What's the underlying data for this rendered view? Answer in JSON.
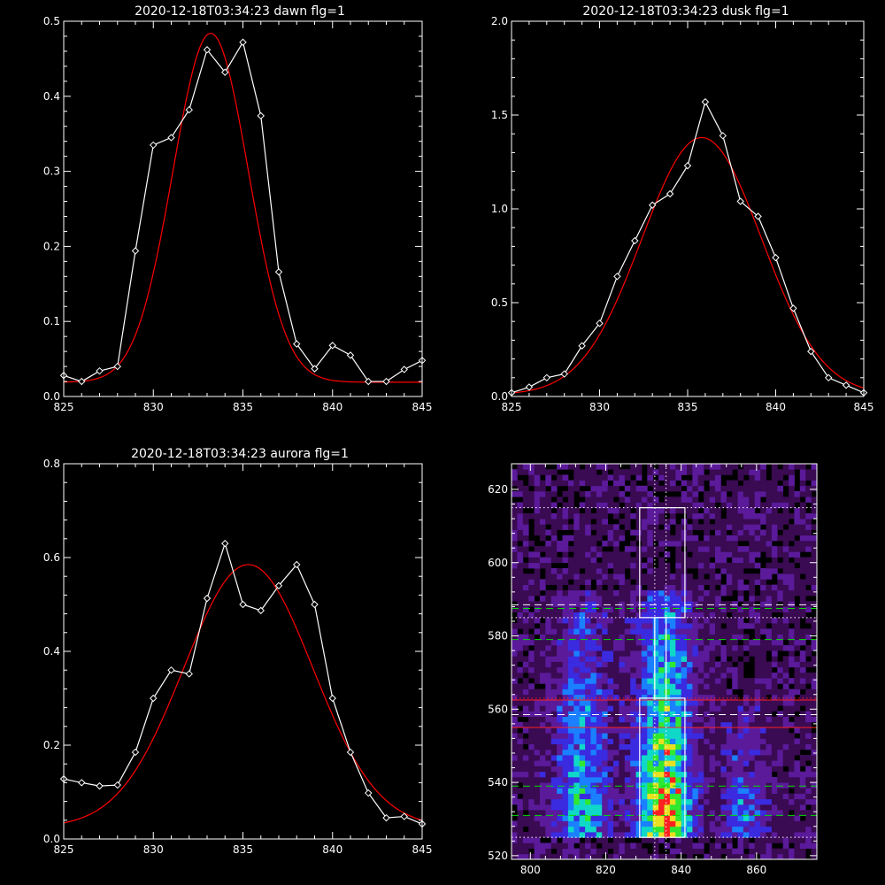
{
  "chart_data": [
    {
      "type": "line",
      "title": "2020-12-18T03:34:23 dawn flg=1",
      "xlim": [
        825,
        845
      ],
      "ylim": [
        0,
        0.5
      ],
      "xticks": [
        "825",
        "830",
        "835",
        "840",
        "845"
      ],
      "yticks": [
        "0.0",
        "0.1",
        "0.2",
        "0.3",
        "0.4",
        "0.5"
      ],
      "series": [
        {
          "style": "data",
          "color": "#ffffff",
          "marker": "diamond",
          "x": [
            825,
            826,
            827,
            828,
            829,
            830,
            831,
            832,
            833,
            834,
            835,
            836,
            837,
            838,
            839,
            840,
            841,
            842,
            843,
            844,
            845
          ],
          "y": [
            0.028,
            0.02,
            0.034,
            0.04,
            0.194,
            0.335,
            0.345,
            0.382,
            0.462,
            0.432,
            0.472,
            0.374,
            0.166,
            0.07,
            0.037,
            0.068,
            0.055,
            0.02,
            0.02,
            0.036,
            0.048
          ]
        },
        {
          "style": "fit",
          "color": "#ff0000",
          "gaussian": {
            "peak": 0.465,
            "center": 833.2,
            "sigma": 2.1,
            "baseline": 0.019
          }
        }
      ]
    },
    {
      "type": "line",
      "title": "2020-12-18T03:34:23 dusk flg=1",
      "xlim": [
        825,
        845
      ],
      "ylim": [
        0,
        2.0
      ],
      "xticks": [
        "825",
        "830",
        "835",
        "840",
        "845"
      ],
      "yticks": [
        "0.0",
        "0.5",
        "1.0",
        "1.5",
        "2.0"
      ],
      "series": [
        {
          "style": "data",
          "color": "#ffffff",
          "marker": "diamond",
          "x": [
            825,
            826,
            827,
            828,
            829,
            830,
            831,
            832,
            833,
            834,
            835,
            836,
            837,
            838,
            839,
            840,
            841,
            842,
            843,
            844,
            845
          ],
          "y": [
            0.02,
            0.05,
            0.1,
            0.12,
            0.27,
            0.39,
            0.64,
            0.83,
            1.02,
            1.08,
            1.23,
            1.57,
            1.39,
            1.04,
            0.96,
            0.74,
            0.47,
            0.24,
            0.1,
            0.06,
            0.02
          ]
        },
        {
          "style": "fit",
          "color": "#ff0000",
          "gaussian": {
            "peak": 1.37,
            "center": 835.8,
            "sigma": 3.4,
            "baseline": 0.01
          }
        }
      ]
    },
    {
      "type": "line",
      "title": "2020-12-18T03:34:23 aurora flg=1",
      "xlim": [
        825,
        845
      ],
      "ylim": [
        0,
        0.8
      ],
      "xticks": [
        "825",
        "830",
        "835",
        "840",
        "845"
      ],
      "yticks": [
        "0.0",
        "0.2",
        "0.4",
        "0.6",
        "0.8"
      ],
      "series": [
        {
          "style": "data",
          "color": "#ffffff",
          "marker": "diamond",
          "x": [
            825,
            826,
            827,
            828,
            829,
            830,
            831,
            832,
            833,
            834,
            835,
            836,
            837,
            838,
            839,
            840,
            841,
            842,
            843,
            844,
            845
          ],
          "y": [
            0.128,
            0.12,
            0.113,
            0.115,
            0.185,
            0.3,
            0.36,
            0.352,
            0.513,
            0.63,
            0.5,
            0.487,
            0.54,
            0.585,
            0.5,
            0.3,
            0.185,
            0.098,
            0.045,
            0.048,
            0.032
          ]
        },
        {
          "style": "fit",
          "color": "#ff0000",
          "gaussian": {
            "peak": 0.56,
            "center": 835.3,
            "sigma": 3.6,
            "baseline": 0.025
          }
        }
      ]
    },
    {
      "type": "heatmap",
      "title": "",
      "xlim": [
        795,
        876
      ],
      "ylim": [
        519,
        627
      ],
      "xticks": [
        "800",
        "820",
        "840",
        "860"
      ],
      "yticks": [
        "520",
        "540",
        "560",
        "580",
        "600",
        "620"
      ],
      "xtick_values": [
        800,
        820,
        840,
        860
      ],
      "ytick_values": [
        520,
        540,
        560,
        580,
        600,
        620
      ],
      "colormap": [
        "#000000",
        "#3a0a52",
        "#5a1a9a",
        "#3a2ae0",
        "#1a80ff",
        "#10d8c8",
        "#30e830",
        "#e8e020",
        "#ff2020"
      ],
      "emission_columns": [
        {
          "center_x": 813,
          "width": 5,
          "y_range": [
            527,
            590
          ],
          "peak": 0.55
        },
        {
          "center_x": 835,
          "width": 5,
          "y_range": [
            527,
            590
          ],
          "peak": 0.95
        },
        {
          "center_x": 856,
          "width": 4,
          "y_range": [
            527,
            560
          ],
          "peak": 0.38
        }
      ],
      "boxes": [
        {
          "color": "#ffffff",
          "x": [
            829,
            841
          ],
          "y": [
            585,
            615
          ]
        },
        {
          "color": "#ffffff",
          "x": [
            833,
            836
          ],
          "y": [
            563,
            585
          ]
        },
        {
          "color": "#ffffff",
          "x": [
            829,
            841
          ],
          "y": [
            525,
            563
          ]
        }
      ],
      "hlines": [
        {
          "y": 615,
          "color": "#ffffff",
          "dash": "dot"
        },
        {
          "y": 588.5,
          "color": "#ffffff",
          "dash": "dash"
        },
        {
          "y": 587.5,
          "color": "#00dd00",
          "dash": "dash"
        },
        {
          "y": 585,
          "color": "#ffffff",
          "dash": "dot"
        },
        {
          "y": 579,
          "color": "#00dd00",
          "dash": "dash"
        },
        {
          "y": 563,
          "color": "#ff2020",
          "dash": "dot"
        },
        {
          "y": 562.5,
          "color": "#ff2020",
          "dash": "solid"
        },
        {
          "y": 558.5,
          "color": "#ffffff",
          "dash": "dash"
        },
        {
          "y": 555,
          "color": "#ff2020",
          "dash": "solid"
        },
        {
          "y": 539,
          "color": "#00dd00",
          "dash": "dash"
        },
        {
          "y": 531,
          "color": "#00dd00",
          "dash": "dash"
        },
        {
          "y": 525,
          "color": "#ffffff",
          "dash": "dot"
        }
      ],
      "vlines": [
        {
          "x": 833,
          "color": "#ffffff",
          "dash": "dot"
        },
        {
          "x": 836,
          "color": "#ffffff",
          "dash": "dot"
        }
      ]
    }
  ]
}
